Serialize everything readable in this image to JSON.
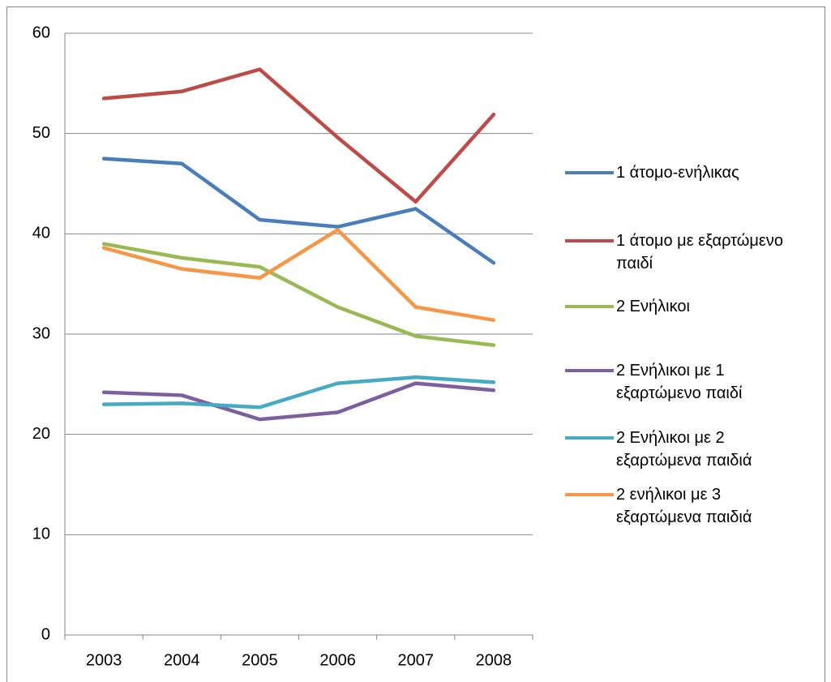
{
  "chart_data": {
    "type": "line",
    "categories": [
      "2003",
      "2004",
      "2005",
      "2006",
      "2007",
      "2008"
    ],
    "series": [
      {
        "name": "1 άτομο-ενήλικας",
        "color": "#4a7ebb",
        "values": [
          47.5,
          47.0,
          41.4,
          40.7,
          42.5,
          37.1
        ]
      },
      {
        "name": "1 άτομο με εξαρτώμενο παιδί",
        "color": "#be4b48",
        "values": [
          53.5,
          54.2,
          56.4,
          49.6,
          43.2,
          51.9
        ]
      },
      {
        "name": "2 Ενήλικοι",
        "color": "#98b954",
        "values": [
          39.0,
          37.6,
          36.7,
          32.7,
          29.8,
          28.9
        ]
      },
      {
        "name": "2 Ενήλικοι με 1 εξαρτώμενο παιδί",
        "color": "#7d5fa0",
        "values": [
          24.2,
          23.9,
          21.5,
          22.2,
          25.1,
          24.4
        ]
      },
      {
        "name": "2 Ενήλικοι με 2 εξαρτώμενα παιδιά",
        "color": "#46aac5",
        "values": [
          23.0,
          23.1,
          22.7,
          25.1,
          25.7,
          25.2
        ]
      },
      {
        "name": "2 ενήλικοι με 3 εξαρτώμενα παιδιά",
        "color": "#f79646",
        "values": [
          38.6,
          36.5,
          35.6,
          40.4,
          32.7,
          31.4
        ]
      }
    ],
    "ylim": [
      0,
      60
    ],
    "yticks": [
      0,
      10,
      20,
      30,
      40,
      50,
      60
    ],
    "grid": true,
    "legend": "right"
  }
}
